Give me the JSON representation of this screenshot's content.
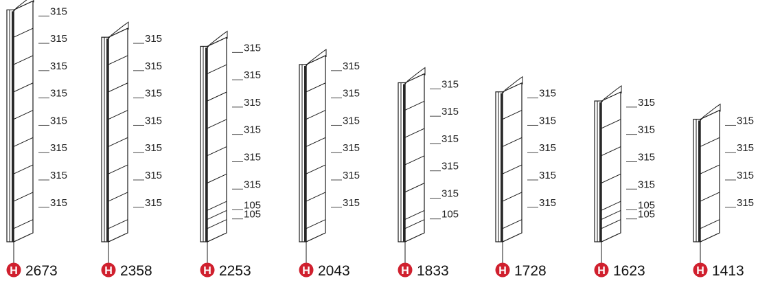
{
  "badge": {
    "letter": "H",
    "color": "#d0202e",
    "icon": "height-badge-icon"
  },
  "panels": [
    {
      "height": "2673",
      "segments": [
        "315",
        "315",
        "315",
        "315",
        "315",
        "315",
        "315",
        "315"
      ]
    },
    {
      "height": "2358",
      "segments": [
        "315",
        "315",
        "315",
        "315",
        "315",
        "315",
        "315"
      ]
    },
    {
      "height": "2253",
      "segments": [
        "315",
        "315",
        "315",
        "315",
        "315",
        "315",
        "105",
        "105"
      ]
    },
    {
      "height": "2043",
      "segments": [
        "315",
        "315",
        "315",
        "315",
        "315",
        "315"
      ]
    },
    {
      "height": "1833",
      "segments": [
        "315",
        "315",
        "315",
        "315",
        "315",
        "105"
      ]
    },
    {
      "height": "1728",
      "segments": [
        "315",
        "315",
        "315",
        "315",
        "315"
      ]
    },
    {
      "height": "1623",
      "segments": [
        "315",
        "315",
        "315",
        "315",
        "105",
        "105"
      ]
    },
    {
      "height": "1413",
      "segments": [
        "315",
        "315",
        "315",
        "315"
      ]
    }
  ]
}
